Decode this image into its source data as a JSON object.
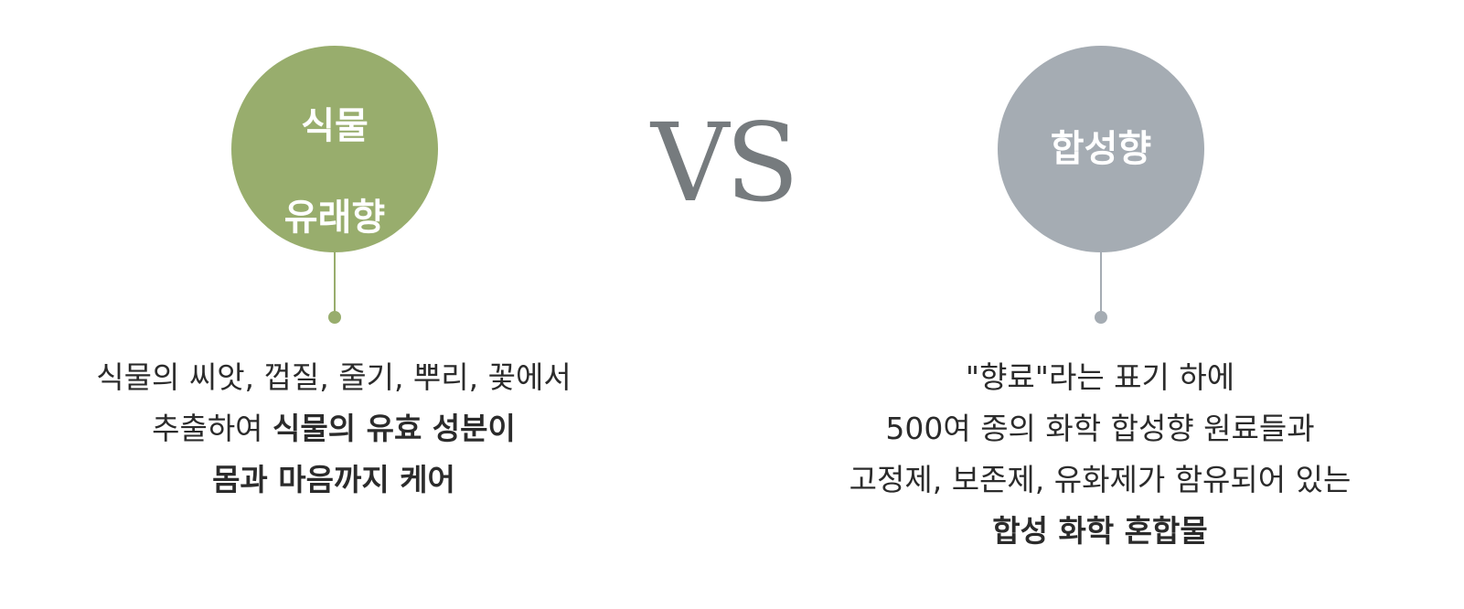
{
  "vs_label": "VS",
  "left": {
    "title_line1": "식물",
    "title_line2": "유래향",
    "lines": [
      {
        "normal": "식물의 씨앗, 껍질, 줄기, 뿌리, 꽃에서",
        "bold": ""
      },
      {
        "normal": "추출하여 ",
        "bold": "식물의 유효 성분이"
      },
      {
        "normal": "",
        "bold": "몸과 마음까지 케어"
      }
    ]
  },
  "right": {
    "title": "합성향",
    "lines": [
      {
        "normal": "\"향료\"라는 표기 하에",
        "bold": ""
      },
      {
        "normal": "500여 종의 화학 합성향 원료들과",
        "bold": ""
      },
      {
        "normal": "고정제, 보존제, 유화제가 함유되어 있는",
        "bold": ""
      },
      {
        "normal": "",
        "bold": "합성 화학 혼합물"
      }
    ]
  },
  "colors": {
    "green": "#98ad6d",
    "gray": "#a5acb3",
    "vs": "#767b7e"
  }
}
